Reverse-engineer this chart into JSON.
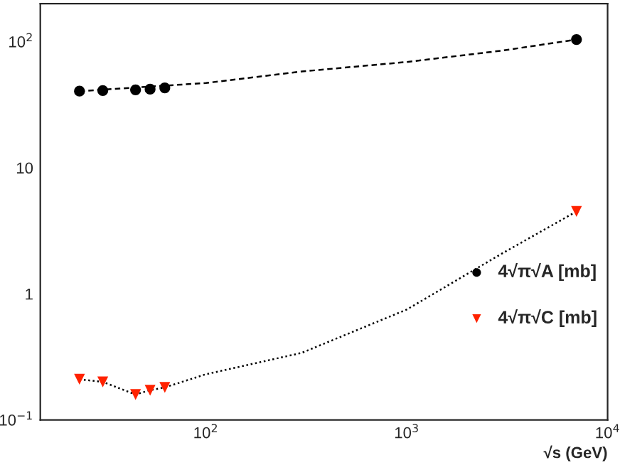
{
  "chart_data": {
    "type": "scatter",
    "xlabel": "√s (GeV)",
    "log": "xy",
    "grid": false,
    "legend": "right",
    "xlim": [
      15,
      10000
    ],
    "ylim": [
      0.1,
      200
    ],
    "xticks": [
      {
        "value": 100,
        "label": "10$^{2}$"
      },
      {
        "value": 1000,
        "label": "10$^{3}$"
      },
      {
        "value": 10000,
        "label": "10$^{4}$"
      }
    ],
    "yticks": [
      {
        "value": 0.1,
        "label": "10$^{−1}$"
      },
      1,
      10,
      {
        "value": 100,
        "label": "10$^{2}$"
      }
    ],
    "series": [
      {
        "type": "line",
        "color": "#000000",
        "line_style": "dashed",
        "marker": "none",
        "x": [
          23.5,
          100,
          300,
          1000,
          3000,
          7000
        ],
        "values": [
          40.5,
          47,
          58,
          69,
          85,
          104
        ]
      },
      {
        "type": "line",
        "color": "#000000",
        "line_style": "dotted",
        "marker": "none",
        "x": [
          23.5,
          30.7,
          44.7,
          52.8,
          62.5,
          100,
          300,
          1000,
          3000,
          7000
        ],
        "values": [
          0.21,
          0.2,
          0.159,
          0.172,
          0.181,
          0.23,
          0.34,
          0.75,
          2.1,
          4.5
        ]
      },
      {
        "name": "4√π√A [mb]",
        "color": "#000000",
        "marker": "circle",
        "x": [
          23.5,
          30.7,
          44.7,
          52.8,
          62.5,
          7000
        ],
        "values": [
          40.5,
          41,
          41.5,
          42,
          43,
          104
        ]
      },
      {
        "name": "4√π√C [mb]",
        "color": "#ff2200",
        "marker": "triangle",
        "x": [
          23.5,
          30.7,
          44.7,
          52.8,
          62.5,
          7000
        ],
        "values": [
          0.21,
          0.2,
          0.159,
          0.172,
          0.181,
          4.5
        ]
      }
    ]
  }
}
